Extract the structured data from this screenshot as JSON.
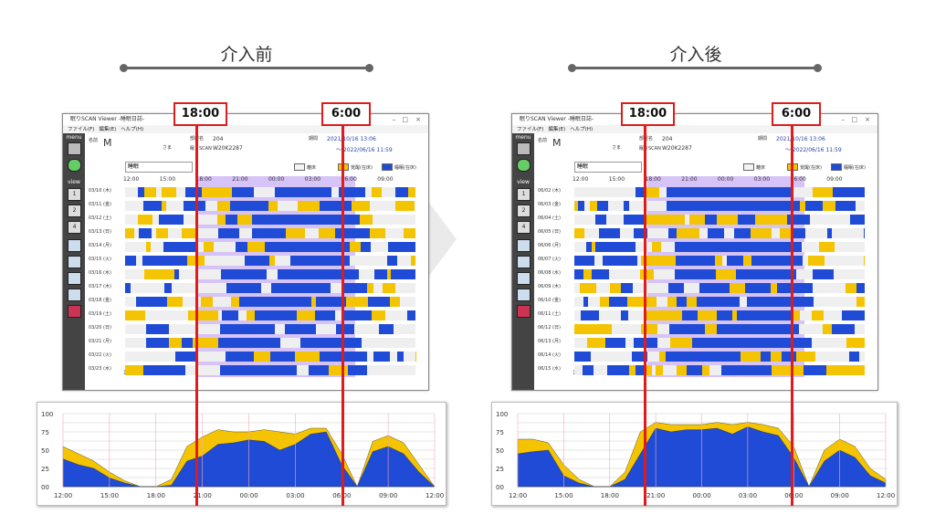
{
  "panels": [
    {
      "heading": "介入前",
      "marker_left": "18:00",
      "marker_right": "6:00",
      "window": {
        "title": "眠りSCAN Viewer -睡眠日誌-",
        "menu": [
          "ファイル(F)",
          "編集(E)",
          "ヘルプ(H)"
        ],
        "name_label": "名前",
        "name_value": "M",
        "sama": "さま",
        "room_label": "部屋名",
        "room_value": "204",
        "device_label": "眠りSCAN",
        "device_value": "W20K2287",
        "period_label": "期間",
        "period_from": "2021/10/16 13:06",
        "period_to": "～ 2022/06/16 11:59",
        "dropdown": "睡眠",
        "legend": [
          "離床",
          "覚醒(在床)",
          "睡眠(在床)"
        ],
        "side_menu": "menu",
        "side_view": "view",
        "view_buttons": [
          "1",
          "2",
          "4"
        ],
        "dates": [
          "03/10 (木)",
          "03/11 (金)",
          "03/12 (土)",
          "03/13 (日)",
          "03/14 (月)",
          "03/15 (火)",
          "03/16 (水)",
          "03/17 (木)",
          "03/18 (金)",
          "03/19 (土)",
          "03/20 (日)",
          "03/21 (月)",
          "03/22 (火)",
          "03/23 (水)"
        ],
        "times": [
          "12:00",
          "15:00",
          "18:00",
          "21:00",
          "00:00",
          "03:00",
          "06:00",
          "09:00"
        ]
      },
      "graph": {
        "y_ticks": [
          "100",
          "75",
          "50",
          "25",
          "00"
        ],
        "x_ticks": [
          "12:00",
          "15:00",
          "18:00",
          "21:00",
          "00:00",
          "03:00",
          "06:00",
          "09:00",
          "12:00"
        ],
        "chart_data": {
          "type": "area",
          "x": [
            "12:00",
            "13:00",
            "14:00",
            "15:00",
            "16:00",
            "17:00",
            "18:00",
            "19:00",
            "20:00",
            "21:00",
            "22:00",
            "23:00",
            "00:00",
            "01:00",
            "02:00",
            "03:00",
            "04:00",
            "05:00",
            "06:00",
            "07:00",
            "08:00",
            "09:00",
            "10:00",
            "11:00",
            "12:00"
          ],
          "series": [
            {
              "name": "睡眠(在床)",
              "color": "#1f4bd6",
              "values": [
                38,
                30,
                25,
                12,
                5,
                0,
                0,
                2,
                35,
                42,
                58,
                60,
                64,
                62,
                50,
                58,
                72,
                75,
                30,
                0,
                48,
                55,
                45,
                20,
                0
              ]
            },
            {
              "name": "覚醒(在床)",
              "color": "#f5c400",
              "values": [
                55,
                45,
                35,
                20,
                8,
                0,
                0,
                10,
                55,
                68,
                78,
                75,
                75,
                78,
                75,
                72,
                80,
                80,
                45,
                0,
                62,
                70,
                60,
                30,
                0
              ]
            }
          ],
          "ylim": [
            0,
            100
          ]
        }
      }
    },
    {
      "heading": "介入後",
      "marker_left": "18:00",
      "marker_right": "6:00",
      "window": {
        "title": "眠りSCAN Viewer -睡眠日誌-",
        "menu": [
          "ファイル(F)",
          "編集(E)",
          "ヘルプ(H)"
        ],
        "name_label": "名前",
        "name_value": "M",
        "sama": "さま",
        "room_label": "部屋名",
        "room_value": "204",
        "device_label": "眠りSCAN",
        "device_value": "W20K2287",
        "period_label": "期間",
        "period_from": "2021/10/16 13:06",
        "period_to": "～ 2022/06/16 11:59",
        "dropdown": "睡眠",
        "legend": [
          "離床",
          "覚醒(在床)",
          "睡眠(在床)"
        ],
        "side_menu": "menu",
        "side_view": "view",
        "view_buttons": [
          "1",
          "2",
          "4"
        ],
        "dates": [
          "06/02 (木)",
          "06/03 (金)",
          "06/04 (土)",
          "06/05 (日)",
          "06/06 (月)",
          "06/07 (火)",
          "06/08 (水)",
          "06/09 (木)",
          "06/10 (金)",
          "06/11 (土)",
          "06/12 (日)",
          "06/13 (月)",
          "06/14 (火)",
          "06/15 (水)"
        ],
        "times": [
          "12:00",
          "15:00",
          "18:00",
          "21:00",
          "00:00",
          "03:00",
          "06:00",
          "09:00"
        ]
      },
      "graph": {
        "y_ticks": [
          "100",
          "75",
          "50",
          "25",
          "00"
        ],
        "x_ticks": [
          "12:00",
          "15:00",
          "18:00",
          "21:00",
          "00:00",
          "03:00",
          "06:00",
          "09:00",
          "12:00"
        ],
        "chart_data": {
          "type": "area",
          "x": [
            "12:00",
            "13:00",
            "14:00",
            "15:00",
            "16:00",
            "17:00",
            "18:00",
            "19:00",
            "20:00",
            "21:00",
            "22:00",
            "23:00",
            "00:00",
            "01:00",
            "02:00",
            "03:00",
            "04:00",
            "05:00",
            "06:00",
            "07:00",
            "08:00",
            "09:00",
            "10:00",
            "11:00",
            "12:00"
          ],
          "series": [
            {
              "name": "睡眠(在床)",
              "color": "#1f4bd6",
              "values": [
                45,
                48,
                50,
                15,
                5,
                0,
                0,
                10,
                45,
                80,
                75,
                78,
                78,
                80,
                72,
                82,
                75,
                70,
                40,
                0,
                35,
                50,
                40,
                15,
                5
              ]
            },
            {
              "name": "覚醒(在床)",
              "color": "#f5c400",
              "values": [
                65,
                65,
                60,
                30,
                10,
                0,
                0,
                20,
                75,
                88,
                85,
                85,
                85,
                88,
                85,
                88,
                85,
                80,
                55,
                0,
                50,
                65,
                55,
                25,
                10
              ]
            }
          ],
          "ylim": [
            0,
            100
          ]
        }
      }
    }
  ],
  "colors": {
    "red": "#e01b1b",
    "sleep": "#1f4bd6",
    "awake": "#f5c400",
    "purple": "#b592f0"
  }
}
